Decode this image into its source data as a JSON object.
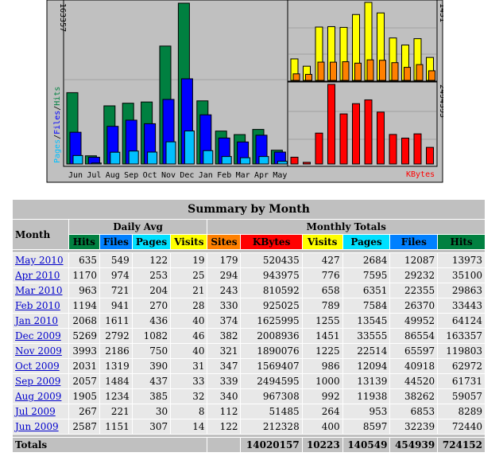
{
  "graph": {
    "left_axis_max": "163357",
    "right_top_axis_max": "1451",
    "right_bottom_axis_max": "2494595",
    "legend_left": [
      "Pages",
      "Files",
      "Hits"
    ],
    "legend_right": "KBytes",
    "colors": {
      "hits": "#008040",
      "files": "#0000ff",
      "pages": "#00c0ff",
      "visits": "#ffff00",
      "sites": "#ff8000",
      "kbytes": "#ff0000",
      "sep": "#000000",
      "frame": "#c0c0c0"
    }
  },
  "chart_data": [
    {
      "type": "bar",
      "categories": [
        "Jun",
        "Jul",
        "Aug",
        "Sep",
        "Oct",
        "Nov",
        "Dec",
        "Jan",
        "Feb",
        "Mar",
        "Apr",
        "May"
      ],
      "series": [
        {
          "name": "Hits",
          "values": [
            72440,
            8289,
            59057,
            61731,
            62972,
            119803,
            163357,
            64124,
            33443,
            29863,
            35100,
            13973
          ]
        },
        {
          "name": "Files",
          "values": [
            32239,
            6853,
            38262,
            44520,
            40918,
            65597,
            86554,
            49952,
            26370,
            22355,
            29232,
            12087
          ]
        },
        {
          "name": "Pages",
          "values": [
            8597,
            953,
            11938,
            13139,
            12094,
            22514,
            33555,
            13545,
            7584,
            6351,
            7595,
            2684
          ]
        }
      ],
      "ylim": [
        0,
        163357
      ]
    },
    {
      "type": "bar",
      "categories": [
        "Jun",
        "Jul",
        "Aug",
        "Sep",
        "Oct",
        "Nov",
        "Dec",
        "Jan",
        "Feb",
        "Mar",
        "Apr",
        "May"
      ],
      "series": [
        {
          "name": "Visits",
          "values": [
            400,
            264,
            992,
            1000,
            986,
            1225,
            1451,
            1255,
            789,
            658,
            776,
            427
          ]
        },
        {
          "name": "Sites",
          "values": [
            122,
            112,
            340,
            339,
            347,
            321,
            382,
            374,
            330,
            243,
            294,
            179
          ]
        }
      ],
      "ylim": [
        0,
        1451
      ]
    },
    {
      "type": "bar",
      "categories": [
        "Jun",
        "Jul",
        "Aug",
        "Sep",
        "Oct",
        "Nov",
        "Dec",
        "Jan",
        "Feb",
        "Mar",
        "Apr",
        "May"
      ],
      "series": [
        {
          "name": "KBytes",
          "values": [
            212328,
            51485,
            967308,
            2494595,
            1569407,
            1890076,
            2008936,
            1625995,
            925025,
            810592,
            943975,
            520435
          ]
        }
      ],
      "ylim": [
        0,
        2494595
      ]
    }
  ],
  "summary": {
    "title": "Summary by Month",
    "month_header": "Month",
    "daily_avg_header": "Daily Avg",
    "monthly_totals_header": "Monthly Totals",
    "daily_cols": [
      {
        "label": "Hits",
        "color": "#008040"
      },
      {
        "label": "Files",
        "color": "#0080ff"
      },
      {
        "label": "Pages",
        "color": "#00e0ff"
      },
      {
        "label": "Visits",
        "color": "#ffff00"
      }
    ],
    "monthly_cols": [
      {
        "label": "Sites",
        "color": "#ff8000"
      },
      {
        "label": "KBytes",
        "color": "#ff0000"
      },
      {
        "label": "Visits",
        "color": "#ffff00"
      },
      {
        "label": "Pages",
        "color": "#00e0ff"
      },
      {
        "label": "Files",
        "color": "#0080ff"
      },
      {
        "label": "Hits",
        "color": "#008040"
      }
    ],
    "rows": [
      {
        "month": "May 2010",
        "d_hits": "635",
        "d_files": "549",
        "d_pages": "122",
        "d_visits": "19",
        "sites": "179",
        "kbytes": "520435",
        "visits": "427",
        "pages": "2684",
        "files": "12087",
        "hits": "13973"
      },
      {
        "month": "Apr 2010",
        "d_hits": "1170",
        "d_files": "974",
        "d_pages": "253",
        "d_visits": "25",
        "sites": "294",
        "kbytes": "943975",
        "visits": "776",
        "pages": "7595",
        "files": "29232",
        "hits": "35100"
      },
      {
        "month": "Mar 2010",
        "d_hits": "963",
        "d_files": "721",
        "d_pages": "204",
        "d_visits": "21",
        "sites": "243",
        "kbytes": "810592",
        "visits": "658",
        "pages": "6351",
        "files": "22355",
        "hits": "29863"
      },
      {
        "month": "Feb 2010",
        "d_hits": "1194",
        "d_files": "941",
        "d_pages": "270",
        "d_visits": "28",
        "sites": "330",
        "kbytes": "925025",
        "visits": "789",
        "pages": "7584",
        "files": "26370",
        "hits": "33443"
      },
      {
        "month": "Jan 2010",
        "d_hits": "2068",
        "d_files": "1611",
        "d_pages": "436",
        "d_visits": "40",
        "sites": "374",
        "kbytes": "1625995",
        "visits": "1255",
        "pages": "13545",
        "files": "49952",
        "hits": "64124"
      },
      {
        "month": "Dec 2009",
        "d_hits": "5269",
        "d_files": "2792",
        "d_pages": "1082",
        "d_visits": "46",
        "sites": "382",
        "kbytes": "2008936",
        "visits": "1451",
        "pages": "33555",
        "files": "86554",
        "hits": "163357"
      },
      {
        "month": "Nov 2009",
        "d_hits": "3993",
        "d_files": "2186",
        "d_pages": "750",
        "d_visits": "40",
        "sites": "321",
        "kbytes": "1890076",
        "visits": "1225",
        "pages": "22514",
        "files": "65597",
        "hits": "119803"
      },
      {
        "month": "Oct 2009",
        "d_hits": "2031",
        "d_files": "1319",
        "d_pages": "390",
        "d_visits": "31",
        "sites": "347",
        "kbytes": "1569407",
        "visits": "986",
        "pages": "12094",
        "files": "40918",
        "hits": "62972"
      },
      {
        "month": "Sep 2009",
        "d_hits": "2057",
        "d_files": "1484",
        "d_pages": "437",
        "d_visits": "33",
        "sites": "339",
        "kbytes": "2494595",
        "visits": "1000",
        "pages": "13139",
        "files": "44520",
        "hits": "61731"
      },
      {
        "month": "Aug 2009",
        "d_hits": "1905",
        "d_files": "1234",
        "d_pages": "385",
        "d_visits": "32",
        "sites": "340",
        "kbytes": "967308",
        "visits": "992",
        "pages": "11938",
        "files": "38262",
        "hits": "59057"
      },
      {
        "month": "Jul 2009",
        "d_hits": "267",
        "d_files": "221",
        "d_pages": "30",
        "d_visits": "8",
        "sites": "112",
        "kbytes": "51485",
        "visits": "264",
        "pages": "953",
        "files": "6853",
        "hits": "8289"
      },
      {
        "month": "Jun 2009",
        "d_hits": "2587",
        "d_files": "1151",
        "d_pages": "307",
        "d_visits": "14",
        "sites": "122",
        "kbytes": "212328",
        "visits": "400",
        "pages": "8597",
        "files": "32239",
        "hits": "72440"
      }
    ],
    "totals": {
      "label": "Totals",
      "kbytes": "14020157",
      "visits": "10223",
      "pages": "140549",
      "files": "454939",
      "hits": "724152"
    }
  }
}
